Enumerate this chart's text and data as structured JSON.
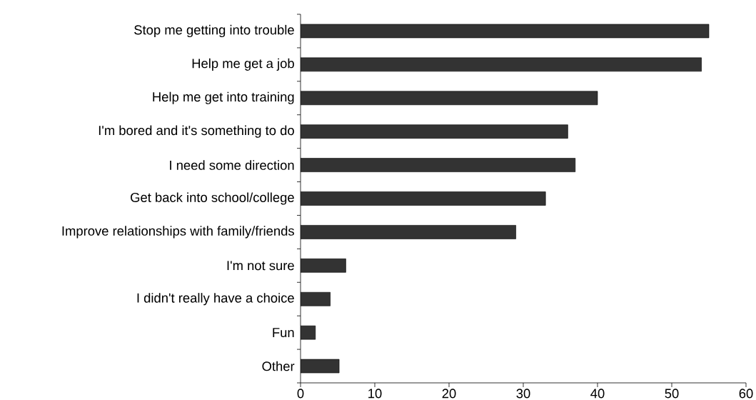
{
  "chart_data": {
    "type": "bar",
    "orientation": "horizontal",
    "categories": [
      "Stop me getting into trouble",
      "Help me get a job",
      "Help me get into training",
      "I'm bored and it's something to do",
      "I need some direction",
      "Get back into school/college",
      "Improve relationships with family/friends",
      "I'm not sure",
      "I didn't really have a choice",
      "Fun",
      "Other"
    ],
    "values": [
      55,
      54,
      40,
      36,
      37,
      33,
      29,
      6.1,
      4,
      2,
      5.2
    ],
    "color": "#333333",
    "xlim": [
      0,
      60
    ],
    "xticks": [
      0,
      10,
      20,
      30,
      40,
      50,
      60
    ]
  }
}
